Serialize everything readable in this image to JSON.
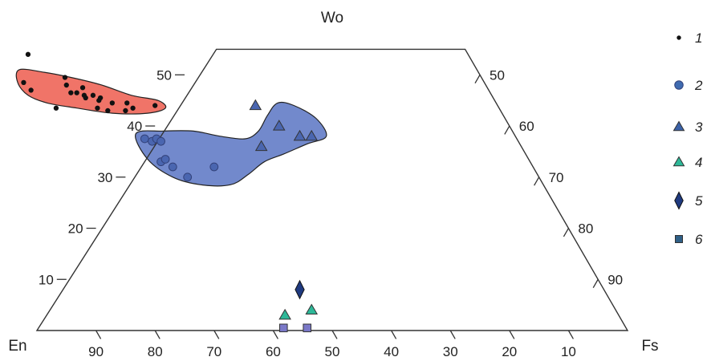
{
  "chart_data": {
    "type": "scatter",
    "diagram": "ternary",
    "apex_labels": {
      "top": "Wo",
      "left": "En",
      "right": "Fs"
    },
    "left_axis_ticks": [
      "10",
      "20",
      "30",
      "40",
      "50"
    ],
    "right_axis_ticks": [
      "50",
      "60",
      "70",
      "80",
      "90"
    ],
    "bottom_axis_ticks": [
      "90",
      "80",
      "70",
      "60",
      "50",
      "40",
      "30",
      "20",
      "10"
    ],
    "wo_range": [
      0,
      55
    ],
    "colors": {
      "red_field": "#f07468",
      "blue_field": "#7289cc",
      "series_1": "#111111",
      "series_2": "#4a66b0",
      "series_3": "#4a66b0",
      "series_4": "#2db898",
      "series_5": "#1f3a80",
      "series_6": "#7a78c8"
    },
    "series": [
      {
        "label": "1",
        "marker": "dot",
        "points": [
          [
            74.5,
            54
          ],
          [
            78,
            48.5
          ],
          [
            77.5,
            47
          ],
          [
            70.5,
            49.5
          ],
          [
            71,
            48
          ],
          [
            68.5,
            47.5
          ],
          [
            71,
            46.5
          ],
          [
            70,
            46.5
          ],
          [
            69,
            46
          ],
          [
            69,
            45.5
          ],
          [
            67.5,
            46
          ],
          [
            67,
            45
          ],
          [
            66.5,
            45.5
          ],
          [
            65,
            44.5
          ],
          [
            62.5,
            44.5
          ],
          [
            62,
            43.5
          ],
          [
            68,
            43.5
          ],
          [
            66.5,
            43
          ],
          [
            75,
            43.5
          ],
          [
            63.5,
            43
          ],
          [
            58,
            44
          ]
        ]
      },
      {
        "label": "2",
        "marker": "circle",
        "points": [
          [
            63,
            37.5
          ],
          [
            62,
            37
          ],
          [
            61,
            37.5
          ],
          [
            60.5,
            37
          ],
          [
            62.5,
            33
          ],
          [
            61.5,
            33.5
          ],
          [
            61,
            32
          ],
          [
            59.5,
            30
          ],
          [
            54,
            32
          ]
        ]
      },
      {
        "label": "3",
        "marker": "triangle",
        "points": [
          [
            41,
            44
          ],
          [
            39,
            40
          ],
          [
            36.5,
            38
          ],
          [
            34.5,
            38
          ],
          [
            44,
            36
          ]
        ]
      },
      {
        "label": "4",
        "marker": "triangle",
        "points": [
          [
            56.5,
            3
          ],
          [
            51.5,
            4
          ]
        ]
      },
      {
        "label": "5",
        "marker": "diamond",
        "points": [
          [
            51.5,
            8
          ]
        ]
      },
      {
        "label": "6",
        "marker": "square",
        "points": [
          [
            58,
            0.5
          ],
          [
            54,
            0.5
          ]
        ]
      }
    ],
    "fields": [
      {
        "color": "red",
        "outline": [
          [
            77.5,
            51
          ],
          [
            73.5,
            50.5
          ],
          [
            69.5,
            49.5
          ],
          [
            65,
            48
          ],
          [
            61,
            46
          ],
          [
            57,
            45
          ],
          [
            56.5,
            43.5
          ],
          [
            60,
            42.5
          ],
          [
            66,
            42.5
          ],
          [
            71.5,
            43.5
          ],
          [
            76,
            44.5
          ],
          [
            78.5,
            46
          ],
          [
            79,
            48.5
          ]
        ]
      },
      {
        "color": "blue",
        "outline": [
          [
            64,
            38.5
          ],
          [
            59,
            39
          ],
          [
            54,
            39
          ],
          [
            50,
            38
          ],
          [
            46,
            37.5
          ],
          [
            43,
            39
          ],
          [
            40,
            42
          ],
          [
            37,
            44.5
          ],
          [
            34.5,
            44
          ],
          [
            32,
            41.5
          ],
          [
            32,
            38
          ],
          [
            36,
            36.5
          ],
          [
            41,
            34.5
          ],
          [
            45,
            33
          ],
          [
            49,
            30.5
          ],
          [
            53,
            28.5
          ],
          [
            58,
            28.5
          ],
          [
            62,
            30
          ],
          [
            64.5,
            33.5
          ]
        ]
      }
    ]
  }
}
